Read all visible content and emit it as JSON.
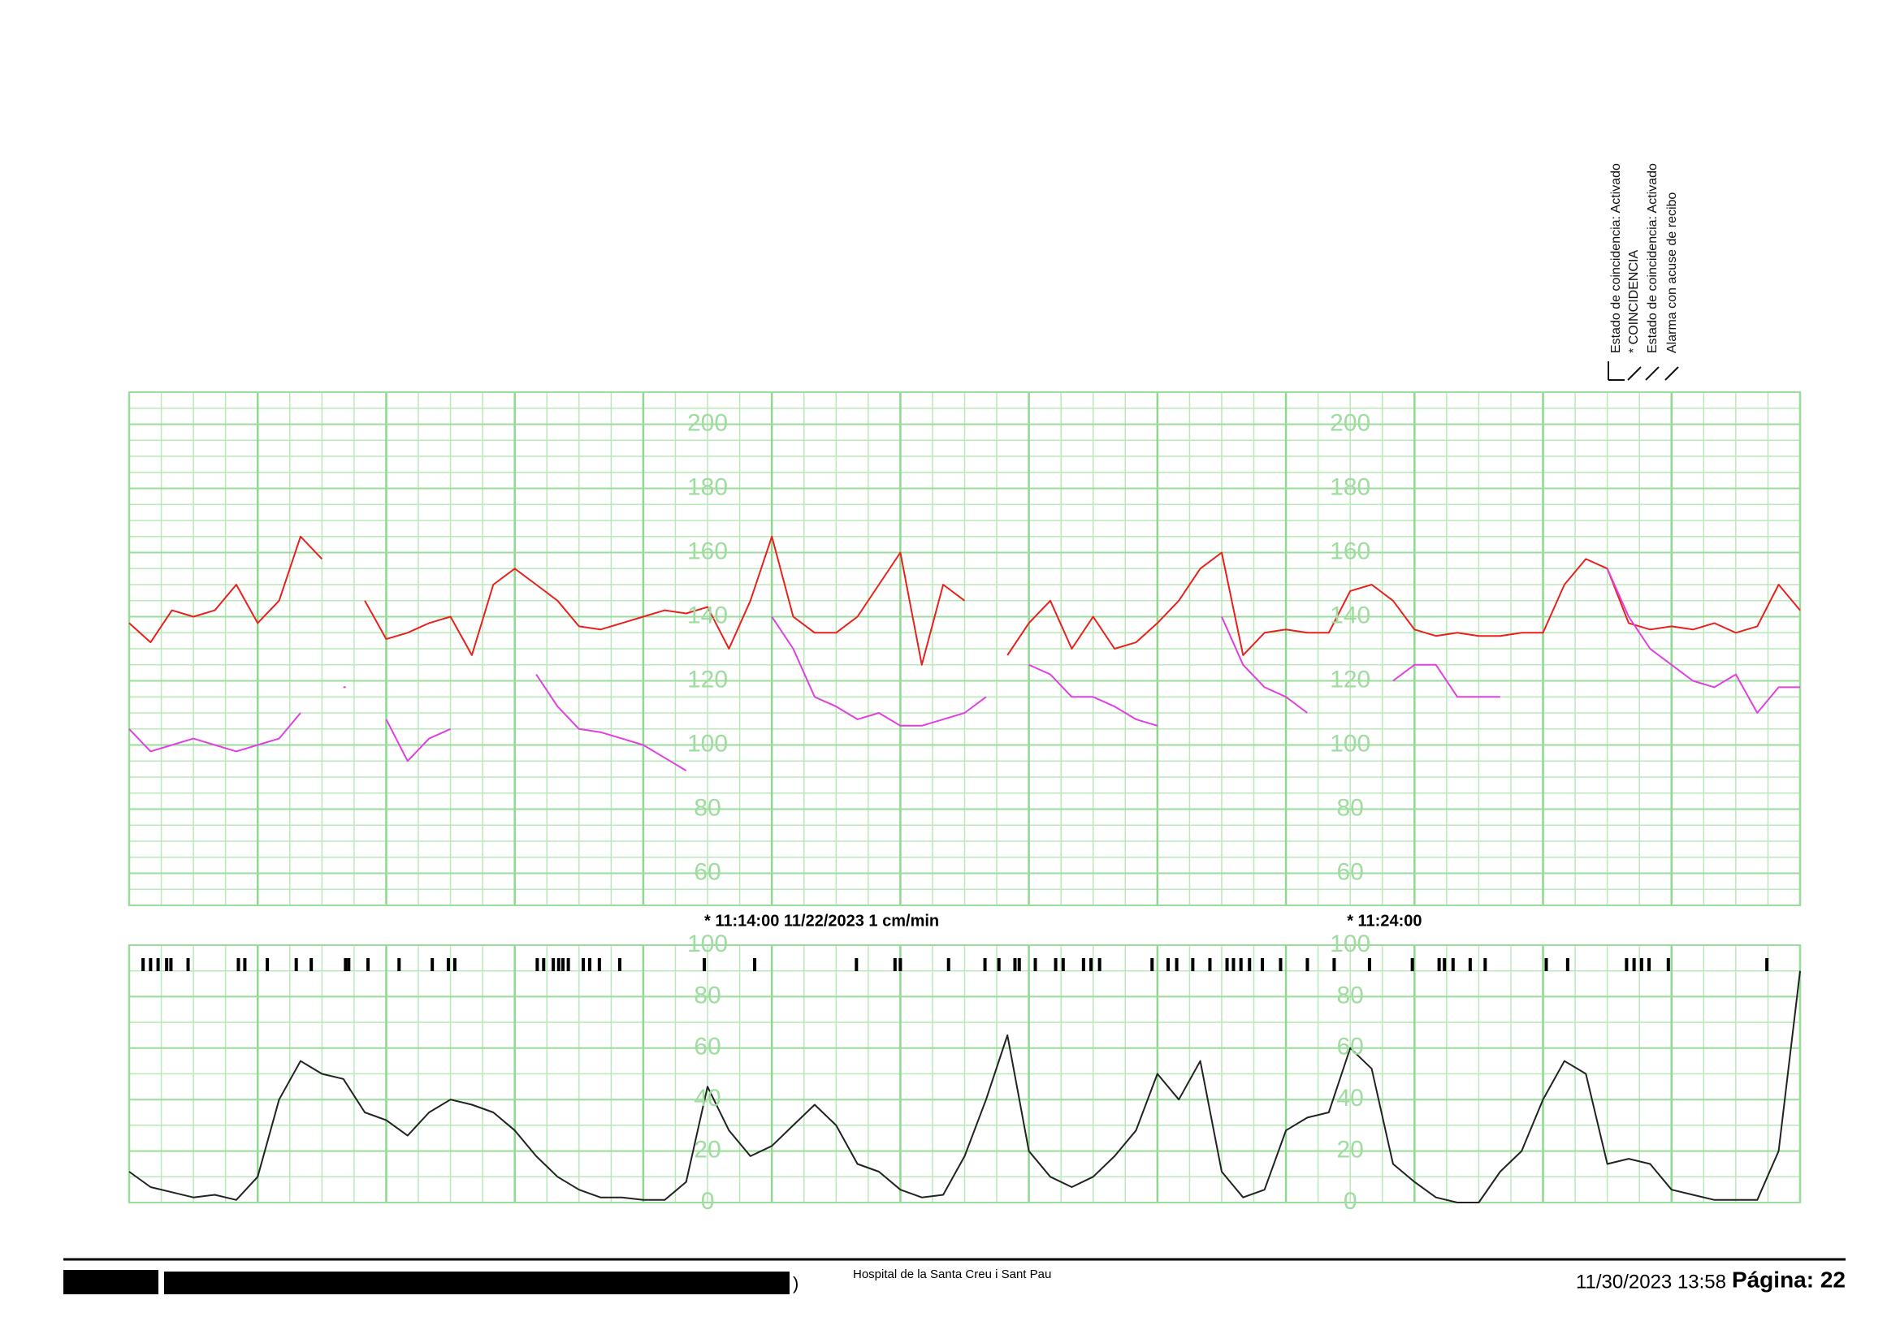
{
  "chart_data": [
    {
      "type": "line",
      "x": [
        "11:05:00",
        "11:05:20",
        "11:05:40",
        "11:06:00",
        "11:06:20",
        "11:06:40",
        "11:07:00",
        "11:07:20",
        "11:07:40",
        "11:08:00",
        "11:08:20",
        "11:08:40",
        "11:09:00",
        "11:09:20",
        "11:09:40",
        "11:10:00",
        "11:10:20",
        "11:10:40",
        "11:11:00",
        "11:11:20",
        "11:11:40",
        "11:12:00",
        "11:12:20",
        "11:12:40",
        "11:13:00",
        "11:13:20",
        "11:13:40",
        "11:14:00",
        "11:14:20",
        "11:14:40",
        "11:15:00",
        "11:15:20",
        "11:15:40",
        "11:16:00",
        "11:16:20",
        "11:16:40",
        "11:17:00",
        "11:17:20",
        "11:17:40",
        "11:18:00",
        "11:18:20",
        "11:18:40",
        "11:19:00",
        "11:19:20",
        "11:19:40",
        "11:20:00",
        "11:20:20",
        "11:20:40",
        "11:21:00",
        "11:21:20",
        "11:21:40",
        "11:22:00",
        "11:22:20",
        "11:22:40",
        "11:23:00",
        "11:23:20",
        "11:23:40",
        "11:24:00",
        "11:24:20",
        "11:24:40",
        "11:25:00",
        "11:25:20",
        "11:25:40",
        "11:26:00",
        "11:26:20",
        "11:26:40",
        "11:27:00",
        "11:27:20",
        "11:27:40",
        "11:28:00",
        "11:28:20",
        "11:28:40",
        "11:29:00",
        "11:29:20",
        "11:29:40",
        "11:30:00",
        "11:30:20",
        "11:30:40",
        "11:31:00"
      ],
      "series": [
        {
          "color": "#e8201e",
          "values": [
            138,
            132,
            142,
            140,
            142,
            150,
            138,
            145,
            165,
            158,
            null,
            145,
            133,
            135,
            138,
            140,
            128,
            150,
            155,
            150,
            145,
            137,
            136,
            138,
            140,
            142,
            141,
            143,
            130,
            145,
            165,
            140,
            135,
            135,
            140,
            150,
            160,
            125,
            150,
            145,
            null,
            128,
            138,
            145,
            130,
            140,
            130,
            132,
            138,
            145,
            155,
            160,
            128,
            135,
            136,
            135,
            135,
            148,
            150,
            145,
            136,
            134,
            135,
            134,
            134,
            135,
            135,
            150,
            158,
            155,
            138,
            136,
            137,
            136,
            138,
            135,
            137,
            150,
            142
          ]
        },
        {
          "color": "#e040e0",
          "values": [
            105,
            98,
            100,
            102,
            100,
            98,
            100,
            102,
            110,
            null,
            118,
            null,
            108,
            95,
            102,
            105,
            null,
            null,
            null,
            122,
            112,
            105,
            104,
            102,
            100,
            96,
            92,
            null,
            null,
            null,
            140,
            130,
            115,
            112,
            108,
            110,
            106,
            106,
            108,
            110,
            115,
            null,
            125,
            122,
            115,
            115,
            112,
            108,
            106,
            null,
            null,
            140,
            125,
            118,
            115,
            110,
            null,
            null,
            null,
            120,
            125,
            125,
            115,
            115,
            115,
            null,
            null,
            null,
            null,
            155,
            140,
            130,
            125,
            120,
            118,
            122,
            110,
            118,
            118
          ]
        }
      ],
      "xlim": [
        "11:05:00",
        "11:31:00"
      ],
      "xticks": [
        {
          "value": "11:14:00",
          "label": "* 11:14:00  11/22/2023  1 cm/min"
        },
        {
          "value": "11:24:00",
          "label": "* 11:24:00"
        }
      ],
      "ylim": [
        50,
        210
      ],
      "yticks": [
        60,
        80,
        100,
        120,
        140,
        160,
        180,
        200
      ],
      "grid": true
    },
    {
      "type": "line",
      "x": [
        "11:05:00",
        "11:05:20",
        "11:05:40",
        "11:06:00",
        "11:06:20",
        "11:06:40",
        "11:07:00",
        "11:07:20",
        "11:07:40",
        "11:08:00",
        "11:08:20",
        "11:08:40",
        "11:09:00",
        "11:09:20",
        "11:09:40",
        "11:10:00",
        "11:10:20",
        "11:10:40",
        "11:11:00",
        "11:11:20",
        "11:11:40",
        "11:12:00",
        "11:12:20",
        "11:12:40",
        "11:13:00",
        "11:13:20",
        "11:13:40",
        "11:14:00",
        "11:14:20",
        "11:14:40",
        "11:15:00",
        "11:15:20",
        "11:15:40",
        "11:16:00",
        "11:16:20",
        "11:16:40",
        "11:17:00",
        "11:17:20",
        "11:17:40",
        "11:18:00",
        "11:18:20",
        "11:18:40",
        "11:19:00",
        "11:19:20",
        "11:19:40",
        "11:20:00",
        "11:20:20",
        "11:20:40",
        "11:21:00",
        "11:21:20",
        "11:21:40",
        "11:22:00",
        "11:22:20",
        "11:22:40",
        "11:23:00",
        "11:23:20",
        "11:23:40",
        "11:24:00",
        "11:24:20",
        "11:24:40",
        "11:25:00",
        "11:25:20",
        "11:25:40",
        "11:26:00",
        "11:26:20",
        "11:26:40",
        "11:27:00",
        "11:27:20",
        "11:27:40",
        "11:28:00",
        "11:28:20",
        "11:28:40",
        "11:29:00",
        "11:29:20",
        "11:29:40",
        "11:30:00",
        "11:30:20",
        "11:30:40",
        "11:31:00"
      ],
      "series": [
        {
          "color": "#222222",
          "values": [
            12,
            6,
            4,
            2,
            3,
            1,
            10,
            40,
            55,
            50,
            48,
            35,
            32,
            26,
            35,
            40,
            38,
            35,
            28,
            18,
            10,
            5,
            2,
            2,
            1,
            1,
            8,
            45,
            28,
            18,
            22,
            30,
            38,
            30,
            15,
            12,
            5,
            2,
            3,
            18,
            40,
            65,
            20,
            10,
            6,
            10,
            18,
            28,
            50,
            40,
            55,
            12,
            2,
            5,
            28,
            33,
            35,
            60,
            52,
            15,
            8,
            2,
            0,
            0,
            12,
            20,
            40,
            55,
            50,
            15,
            17,
            15,
            5,
            3,
            1,
            1,
            1,
            20,
            90
          ]
        }
      ],
      "markers": [
        "11:05:13",
        "11:05:20",
        "11:05:27",
        "11:05:35",
        "11:05:39",
        "11:05:55",
        "11:06:42",
        "11:06:48",
        "11:07:09",
        "11:07:36",
        "11:07:50",
        "11:08:22",
        "11:08:25",
        "11:08:43",
        "11:09:12",
        "11:09:43",
        "11:09:58",
        "11:10:04",
        "11:11:21",
        "11:11:27",
        "11:11:36",
        "11:11:41",
        "11:11:45",
        "11:11:50",
        "11:12:04",
        "11:12:10",
        "11:12:19",
        "11:12:38",
        "11:13:57",
        "11:14:44",
        "11:16:19",
        "11:16:55",
        "11:17:00",
        "11:17:45",
        "11:18:19",
        "11:18:32",
        "11:18:47",
        "11:18:51",
        "11:19:06",
        "11:19:25",
        "11:19:32",
        "11:19:51",
        "11:19:58",
        "11:20:06",
        "11:20:55",
        "11:21:10",
        "11:21:18",
        "11:21:33",
        "11:21:49",
        "11:22:05",
        "11:22:11",
        "11:22:18",
        "11:22:26",
        "11:22:38",
        "11:22:55",
        "11:23:20",
        "11:23:45",
        "11:24:18",
        "11:24:58",
        "11:25:23",
        "11:25:28",
        "11:25:36",
        "11:25:52",
        "11:26:06",
        "11:27:03",
        "11:27:23",
        "11:28:18",
        "11:28:25",
        "11:28:32",
        "11:28:39",
        "11:28:57",
        "11:30:29"
      ],
      "xlim": [
        "11:05:00",
        "11:31:00"
      ],
      "ylim": [
        0,
        100
      ],
      "yticks": [
        0,
        20,
        40,
        60,
        80,
        100
      ],
      "grid": true
    }
  ],
  "header_notes": [
    "Estado de coincidencia: Activado",
    "* COINCIDENCIA",
    "Estado de coincidencia: Activado",
    "Alarma con acuse de recibo"
  ],
  "footer": {
    "fragment": ")",
    "institution": "Hospital de la Santa Creu i Sant Pau",
    "timestamp": "11/30/2023 13:58",
    "page": "Página: 22"
  }
}
